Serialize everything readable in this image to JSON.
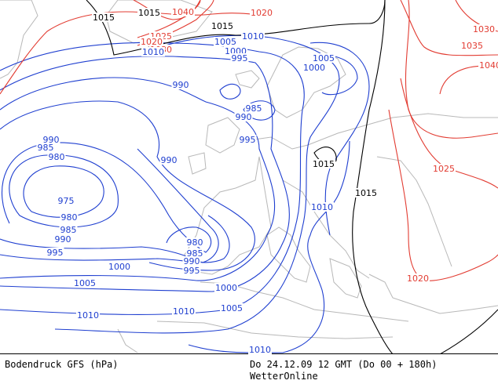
{
  "map": {
    "product_label": "Bodendruck GFS (hPa)",
    "valid_time": "Do 24.12.09 12 GMT (Do 00 + 180h)",
    "brand": "WetterOnline",
    "colors": {
      "low": "#1f3fd0",
      "normal": "#000000",
      "high": "#e23c32",
      "coast": "#b8b8b8"
    },
    "isobar_labels": [
      {
        "text": "1015",
        "cls": "black"
      },
      {
        "text": "1040",
        "cls": "red"
      },
      {
        "text": "1020",
        "cls": "red"
      },
      {
        "text": "1030",
        "cls": "red"
      },
      {
        "text": "1025",
        "cls": "red"
      },
      {
        "text": "1020",
        "cls": "red"
      },
      {
        "text": "1015",
        "cls": "black"
      },
      {
        "text": "1010",
        "cls": "blue"
      },
      {
        "text": "1005",
        "cls": "blue"
      },
      {
        "text": "1010",
        "cls": "blue"
      },
      {
        "text": "1000",
        "cls": "blue"
      },
      {
        "text": "995",
        "cls": "blue"
      },
      {
        "text": "1005",
        "cls": "blue"
      },
      {
        "text": "1000",
        "cls": "blue"
      },
      {
        "text": "990",
        "cls": "blue"
      },
      {
        "text": "985",
        "cls": "blue"
      },
      {
        "text": "990",
        "cls": "blue"
      },
      {
        "text": "995",
        "cls": "blue"
      },
      {
        "text": "990",
        "cls": "blue"
      },
      {
        "text": "985",
        "cls": "blue"
      },
      {
        "text": "980",
        "cls": "blue"
      },
      {
        "text": "990",
        "cls": "blue"
      },
      {
        "text": "975",
        "cls": "blue"
      },
      {
        "text": "980",
        "cls": "blue"
      },
      {
        "text": "985",
        "cls": "blue"
      },
      {
        "text": "990",
        "cls": "blue"
      },
      {
        "text": "995",
        "cls": "blue"
      },
      {
        "text": "980",
        "cls": "blue"
      },
      {
        "text": "985",
        "cls": "blue"
      },
      {
        "text": "990",
        "cls": "blue"
      },
      {
        "text": "995",
        "cls": "blue"
      },
      {
        "text": "1000",
        "cls": "blue"
      },
      {
        "text": "1000",
        "cls": "blue"
      },
      {
        "text": "1005",
        "cls": "blue"
      },
      {
        "text": "1005",
        "cls": "blue"
      },
      {
        "text": "1010",
        "cls": "blue"
      },
      {
        "text": "1010",
        "cls": "blue"
      },
      {
        "text": "1010",
        "cls": "blue"
      },
      {
        "text": "1010",
        "cls": "blue"
      },
      {
        "text": "1015",
        "cls": "black"
      },
      {
        "text": "1015",
        "cls": "black"
      },
      {
        "text": "1015",
        "cls": "black"
      },
      {
        "text": "1030",
        "cls": "red"
      },
      {
        "text": "1035",
        "cls": "red"
      },
      {
        "text": "1040",
        "cls": "red"
      },
      {
        "text": "1025",
        "cls": "red"
      },
      {
        "text": "1020",
        "cls": "red"
      }
    ]
  }
}
